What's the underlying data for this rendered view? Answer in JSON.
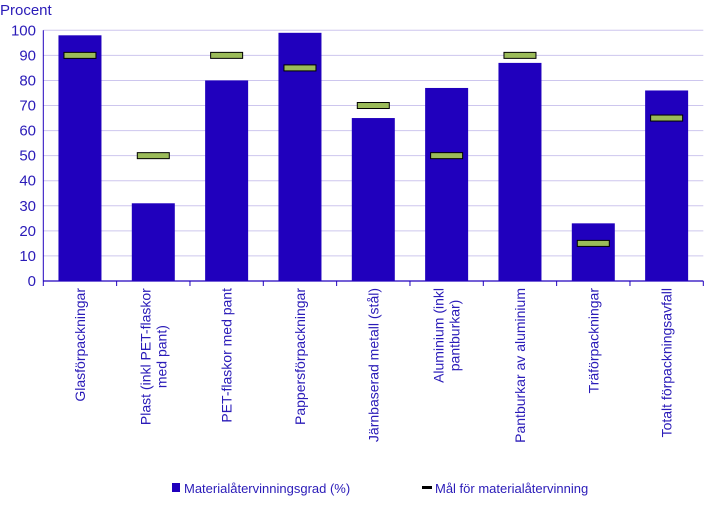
{
  "chart_data": {
    "type": "bar",
    "title": "",
    "ylabel": "Procent",
    "xlabel": "",
    "ylim": [
      0,
      100
    ],
    "yticks": [
      0,
      10,
      20,
      30,
      40,
      50,
      60,
      70,
      80,
      90,
      100
    ],
    "grid": true,
    "legend_position": "bottom",
    "categories": [
      [
        "Glasförpackningar"
      ],
      [
        "Plast (inkl PET-flaskor",
        "med pant)"
      ],
      [
        "PET-flaskor med pant"
      ],
      [
        "Pappersförpackningar"
      ],
      [
        "Järnbaserad metall (stål)"
      ],
      [
        "Aluminium (inkl",
        "pantburkar)"
      ],
      [
        "Pantburkar av aluminium"
      ],
      [
        "Träförpackningar"
      ],
      [
        "Totalt förpackningsavfall"
      ]
    ],
    "series": [
      {
        "name": "Materialåtervinningsgrad (%)",
        "kind": "bar",
        "color": "#2000bd",
        "values": [
          98,
          31,
          80,
          99,
          65,
          77,
          87,
          23,
          76
        ]
      },
      {
        "name": "Mål för materialåtervinning",
        "kind": "marker",
        "color": "#9bbb59",
        "values": [
          90,
          50,
          90,
          85,
          70,
          50,
          90,
          15,
          65
        ]
      }
    ],
    "colors": {
      "text": "#2a1bb8",
      "grid": "#cdc6ee",
      "axis": "#2000bd"
    }
  }
}
